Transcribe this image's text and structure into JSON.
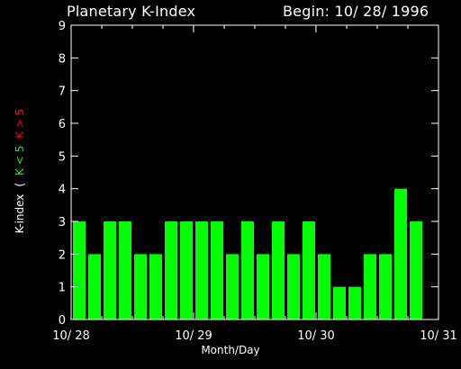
{
  "header": {
    "title": "Planetary K-Index",
    "begin": "Begin: 10/ 28/ 1996"
  },
  "chart_data": {
    "type": "bar",
    "title": "Planetary K-Index",
    "xlabel": "Month/Day",
    "ylabel": "K-index",
    "legend": {
      "open": "(",
      "low": "K < 5",
      "high": "K > 5",
      "low_color": "#00ff00",
      "high_color": "#ff0000"
    },
    "ylim": [
      0,
      9
    ],
    "yticks": [
      "0",
      "1",
      "2",
      "3",
      "4",
      "5",
      "6",
      "7",
      "8",
      "9"
    ],
    "xticks": [
      "10/ 28",
      "10/ 29",
      "10/ 30",
      "10/ 31"
    ],
    "values": [
      3,
      2,
      3,
      3,
      2,
      2,
      3,
      3,
      3,
      3,
      2,
      3,
      2,
      3,
      2,
      3,
      2,
      1,
      1,
      2,
      2,
      4,
      3
    ],
    "bar_color": "#00ff00",
    "axis_color": "#ffffff",
    "background": "#000000"
  }
}
